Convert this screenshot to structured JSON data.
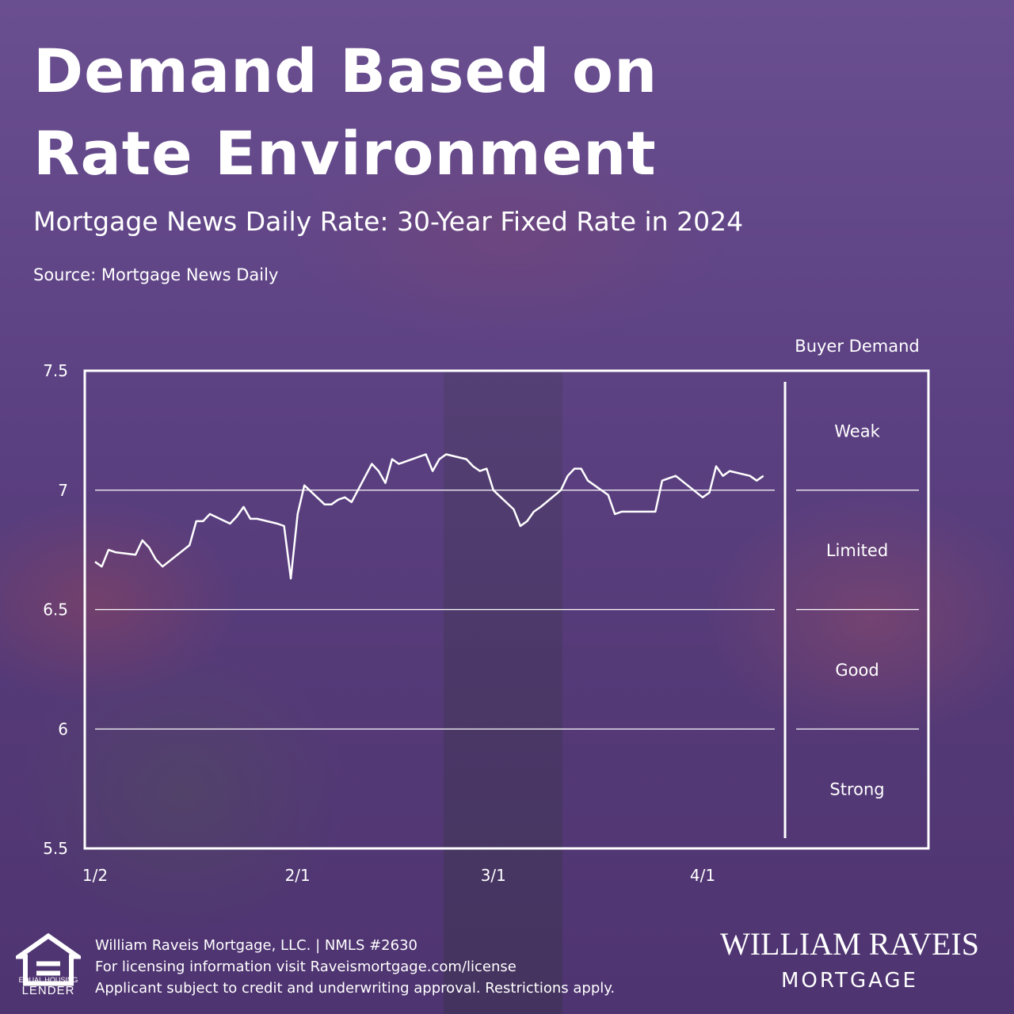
{
  "header": {
    "title_line1": "Demand Based on",
    "title_line2": "Rate Environment",
    "subtitle": "Mortgage News Daily Rate: 30-Year Fixed Rate in 2024",
    "source": "Source: Mortgage News Daily"
  },
  "chart_data": {
    "type": "line",
    "title": "Mortgage News Daily Rate: 30-Year Fixed Rate in 2024",
    "xlabel": "",
    "ylabel": "",
    "ylim": [
      5.5,
      7.5
    ],
    "yticks": [
      7.5,
      7,
      6.5,
      6,
      5.5
    ],
    "xticks": [
      "1/2",
      "2/1",
      "3/1",
      "4/1"
    ],
    "grid": true,
    "line_color": "#ffffff",
    "series": [
      {
        "x": [
          "1/2",
          "1/3",
          "1/4",
          "1/5",
          "1/8",
          "1/9",
          "1/10",
          "1/11",
          "1/12",
          "1/16",
          "1/17",
          "1/18",
          "1/19",
          "1/22",
          "1/23",
          "1/24",
          "1/25",
          "1/26",
          "1/29",
          "1/30",
          "1/31",
          "2/1",
          "2/2",
          "2/5",
          "2/6",
          "2/7",
          "2/8",
          "2/9",
          "2/12",
          "2/13",
          "2/14",
          "2/15",
          "2/16",
          "2/20",
          "2/21",
          "2/22",
          "2/23",
          "2/26",
          "2/27",
          "2/28",
          "2/29",
          "3/1",
          "3/4",
          "3/5",
          "3/6",
          "3/7",
          "3/8",
          "3/11",
          "3/12",
          "3/13",
          "3/14",
          "3/15",
          "3/18",
          "3/19",
          "3/20",
          "3/21",
          "3/22",
          "3/25",
          "3/26",
          "3/27",
          "3/28",
          "4/1",
          "4/2",
          "4/3",
          "4/4",
          "4/5",
          "4/8",
          "4/9",
          "4/10"
        ],
        "values": [
          6.7,
          6.68,
          6.75,
          6.74,
          6.73,
          6.79,
          6.76,
          6.71,
          6.68,
          6.77,
          6.87,
          6.87,
          6.9,
          6.86,
          6.89,
          6.93,
          6.88,
          6.88,
          6.86,
          6.85,
          6.63,
          6.9,
          7.02,
          6.94,
          6.94,
          6.96,
          6.97,
          6.95,
          7.11,
          7.08,
          7.03,
          7.13,
          7.11,
          7.15,
          7.08,
          7.13,
          7.15,
          7.13,
          7.1,
          7.08,
          7.09,
          7.0,
          6.92,
          6.85,
          6.87,
          6.91,
          6.93,
          7.0,
          7.06,
          7.09,
          7.09,
          7.04,
          6.98,
          6.9,
          6.91,
          6.91,
          6.91,
          6.91,
          7.04,
          7.05,
          7.06,
          6.97,
          6.99,
          7.1,
          7.06,
          7.08,
          7.06,
          7.04,
          7.06
        ]
      }
    ],
    "demand_panel": {
      "title": "Buyer Demand",
      "zones": [
        "Weak",
        "Limited",
        "Good",
        "Strong"
      ]
    }
  },
  "footer": {
    "company_line": "William Raveis Mortgage, LLC. | NMLS #2630",
    "license_line": "For licensing information visit Raveismortgage.com/license",
    "disclaimer_line": "Applicant subject to credit and underwriting approval. Restrictions apply.",
    "ehl_top": "EQUAL HOUSING",
    "ehl_bottom": "LENDER",
    "logo_main": "WILLIAM RAVEIS",
    "logo_sub": "MORTGAGE"
  }
}
